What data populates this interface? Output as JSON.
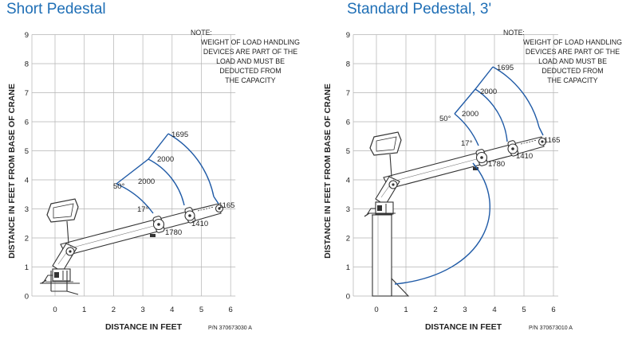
{
  "panels": [
    {
      "title": "Short Pedestal",
      "note": [
        "NOTE:",
        "WEIGHT OF LOAD HANDLING",
        "DEVICES ARE PART OF THE",
        "LOAD AND MUST BE",
        "DEDUCTED FROM",
        "THE CAPACITY"
      ],
      "ylabel": "DISTANCE IN FEET FROM BASE OF CRANE",
      "xlabel": "DISTANCE IN FEET",
      "part_number": "P/N 370673030 A",
      "x_ticks": [
        "0",
        "1",
        "2",
        "3",
        "4",
        "5",
        "6"
      ],
      "y_ticks": [
        "0",
        "1",
        "2",
        "3",
        "4",
        "5",
        "6",
        "7",
        "8",
        "9"
      ],
      "angle_labels": [
        "50°",
        "17°"
      ],
      "capacity_labels": [
        "1695",
        "2000",
        "2000",
        "1780",
        "1410",
        "1165"
      ]
    },
    {
      "title": "Standard Pedestal, 3'",
      "note": [
        "NOTE:",
        "WEIGHT OF LOAD HANDLING",
        "DEVICES ARE PART OF THE",
        "LOAD AND MUST BE",
        "DEDUCTED FROM",
        "THE CAPACITY"
      ],
      "ylabel": "DISTANCE IN FEET FROM BASE OF CRANE",
      "xlabel": "DISTANCE IN FEET",
      "part_number": "P/N 370673010 A",
      "x_ticks": [
        "0",
        "1",
        "2",
        "3",
        "4",
        "5",
        "6"
      ],
      "y_ticks": [
        "0",
        "1",
        "2",
        "3",
        "4",
        "5",
        "6",
        "7",
        "8",
        "9"
      ],
      "angle_labels": [
        "50°",
        "17°"
      ],
      "capacity_labels": [
        "1695",
        "2000",
        "2000",
        "1780",
        "1410",
        "1165"
      ]
    }
  ],
  "colors": {
    "title": "#1f6fb6",
    "envelope": "#1f5aa6",
    "grid": "#b3b3b3",
    "drawing": "#333333"
  }
}
